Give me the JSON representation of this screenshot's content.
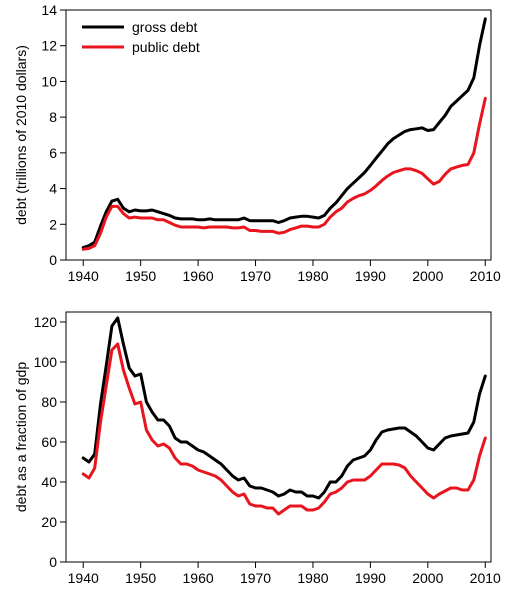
{
  "chart_data": [
    {
      "type": "line",
      "title": "",
      "xlabel": "",
      "ylabel": "debt (trillions of 2010 dollars)",
      "xlim": [
        1937,
        2011
      ],
      "ylim": [
        0,
        14
      ],
      "xticks": [
        1940,
        1950,
        1960,
        1970,
        1980,
        1990,
        2000,
        2010
      ],
      "yticks": [
        0,
        2,
        4,
        6,
        8,
        10,
        12,
        14
      ],
      "grid": false,
      "legend": "top-left",
      "x": [
        1940,
        1941,
        1942,
        1943,
        1944,
        1945,
        1946,
        1947,
        1948,
        1949,
        1950,
        1951,
        1952,
        1953,
        1954,
        1955,
        1956,
        1957,
        1958,
        1959,
        1960,
        1961,
        1962,
        1963,
        1964,
        1965,
        1966,
        1967,
        1968,
        1969,
        1970,
        1971,
        1972,
        1973,
        1974,
        1975,
        1976,
        1977,
        1978,
        1979,
        1980,
        1981,
        1982,
        1983,
        1984,
        1985,
        1986,
        1987,
        1988,
        1989,
        1990,
        1991,
        1992,
        1993,
        1994,
        1995,
        1996,
        1997,
        1998,
        1999,
        2000,
        2001,
        2002,
        2003,
        2004,
        2005,
        2006,
        2007,
        2008,
        2009,
        2010
      ],
      "series": [
        {
          "name": "gross debt",
          "color": "#000000",
          "values": [
            0.7,
            0.8,
            1.0,
            1.9,
            2.7,
            3.3,
            3.4,
            2.9,
            2.7,
            2.8,
            2.75,
            2.75,
            2.8,
            2.7,
            2.6,
            2.5,
            2.35,
            2.3,
            2.3,
            2.3,
            2.25,
            2.25,
            2.3,
            2.25,
            2.25,
            2.25,
            2.25,
            2.25,
            2.35,
            2.2,
            2.2,
            2.2,
            2.2,
            2.2,
            2.1,
            2.2,
            2.35,
            2.4,
            2.45,
            2.45,
            2.4,
            2.35,
            2.5,
            2.9,
            3.2,
            3.6,
            4.0,
            4.3,
            4.6,
            4.9,
            5.3,
            5.7,
            6.1,
            6.5,
            6.8,
            7.0,
            7.2,
            7.3,
            7.35,
            7.4,
            7.25,
            7.3,
            7.7,
            8.1,
            8.6,
            8.9,
            9.2,
            9.5,
            10.2,
            12.0,
            13.5
          ]
        },
        {
          "name": "public debt",
          "color": "#e8141e",
          "values": [
            0.6,
            0.65,
            0.8,
            1.5,
            2.4,
            3.0,
            3.0,
            2.6,
            2.35,
            2.4,
            2.35,
            2.35,
            2.35,
            2.25,
            2.25,
            2.1,
            1.95,
            1.85,
            1.85,
            1.85,
            1.85,
            1.8,
            1.85,
            1.85,
            1.85,
            1.85,
            1.8,
            1.8,
            1.85,
            1.65,
            1.65,
            1.6,
            1.6,
            1.6,
            1.5,
            1.55,
            1.7,
            1.8,
            1.9,
            1.9,
            1.85,
            1.85,
            2.0,
            2.4,
            2.7,
            2.9,
            3.25,
            3.45,
            3.6,
            3.7,
            3.9,
            4.15,
            4.45,
            4.7,
            4.9,
            5.0,
            5.1,
            5.1,
            5.0,
            4.85,
            4.55,
            4.25,
            4.4,
            4.8,
            5.1,
            5.2,
            5.3,
            5.35,
            6.0,
            7.6,
            9.05
          ]
        }
      ]
    },
    {
      "type": "line",
      "title": "",
      "xlabel": "",
      "ylabel": "debt as a fraction of gdp",
      "xlim": [
        1937,
        2011
      ],
      "ylim": [
        0,
        125
      ],
      "xticks": [
        1940,
        1950,
        1960,
        1970,
        1980,
        1990,
        2000,
        2010
      ],
      "yticks": [
        0,
        20,
        40,
        60,
        80,
        100,
        120
      ],
      "grid": false,
      "x": [
        1940,
        1941,
        1942,
        1943,
        1944,
        1945,
        1946,
        1947,
        1948,
        1949,
        1950,
        1951,
        1952,
        1953,
        1954,
        1955,
        1956,
        1957,
        1958,
        1959,
        1960,
        1961,
        1962,
        1963,
        1964,
        1965,
        1966,
        1967,
        1968,
        1969,
        1970,
        1971,
        1972,
        1973,
        1974,
        1975,
        1976,
        1977,
        1978,
        1979,
        1980,
        1981,
        1982,
        1983,
        1984,
        1985,
        1986,
        1987,
        1988,
        1989,
        1990,
        1991,
        1992,
        1993,
        1994,
        1995,
        1996,
        1997,
        1998,
        1999,
        2000,
        2001,
        2002,
        2003,
        2004,
        2005,
        2006,
        2007,
        2008,
        2009,
        2010
      ],
      "series": [
        {
          "name": "gross debt",
          "color": "#000000",
          "values": [
            52,
            50,
            54,
            79,
            98,
            118,
            122,
            109,
            97,
            93,
            94,
            80,
            75,
            71,
            71,
            68,
            62,
            60,
            60,
            58,
            56,
            55,
            53,
            51,
            49,
            46,
            43,
            41,
            42,
            38,
            37,
            37,
            36,
            35,
            33,
            34,
            36,
            35,
            35,
            33,
            33,
            32,
            35,
            40,
            40,
            43,
            48,
            51,
            52,
            53,
            56,
            61,
            65,
            66,
            66.5,
            67,
            67,
            65,
            63,
            60,
            57,
            56,
            59,
            62,
            63,
            63.5,
            64,
            64.5,
            70,
            84,
            93
          ]
        },
        {
          "name": "public debt",
          "color": "#e8141e",
          "values": [
            44,
            42,
            47,
            70,
            88,
            106,
            109,
            96,
            87,
            79,
            80,
            66,
            61,
            58,
            59,
            57,
            52,
            49,
            49,
            48,
            46,
            45,
            44,
            43,
            41,
            38,
            35,
            33,
            34,
            29,
            28,
            28,
            27,
            27,
            24,
            26,
            28,
            28,
            28,
            26,
            26,
            27,
            30,
            34,
            35,
            37,
            40,
            41,
            41,
            41,
            43,
            46,
            49,
            49,
            49,
            48.5,
            47,
            43,
            40,
            37,
            34,
            32,
            34,
            35.5,
            37,
            37,
            36,
            36,
            41,
            53,
            62
          ]
        }
      ]
    }
  ]
}
